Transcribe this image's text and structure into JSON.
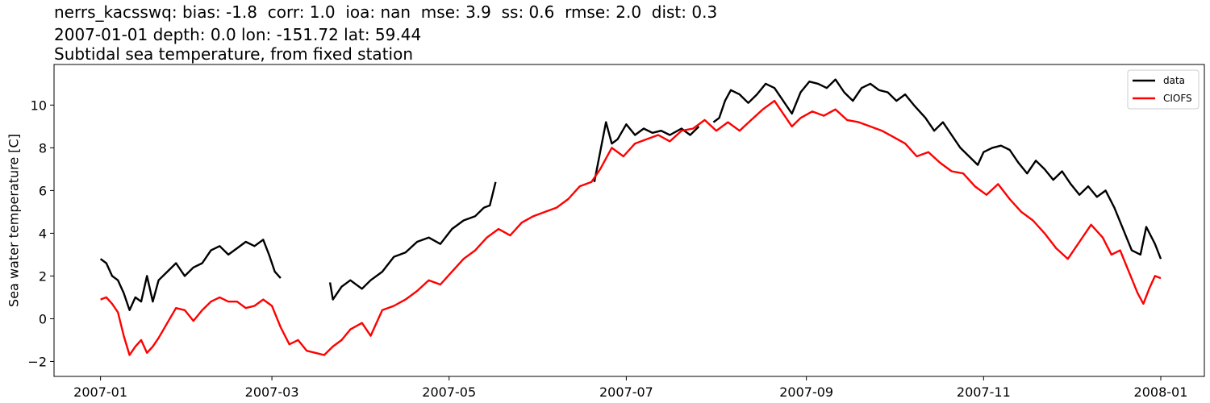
{
  "header": {
    "title_line1": "nerrs_kacsswq: bias: -1.8  corr: 1.0  ioa: nan  mse: 3.9  ss: 0.6  rmse: 2.0  dist: 0.3",
    "title_line2": "2007-01-01 depth: 0.0 lon: -151.72 lat: 59.44",
    "title_line3": "Subtidal sea temperature, from fixed station"
  },
  "chart_data": {
    "type": "line",
    "xlabel": "",
    "ylabel": "Sea water temperature [C]",
    "xlim": [
      "2006-12-16",
      "2008-01-16"
    ],
    "ylim": [
      -2.7,
      11.9
    ],
    "x_ticks": [
      "2007-01",
      "2007-03",
      "2007-05",
      "2007-07",
      "2007-09",
      "2007-11",
      "2008-01"
    ],
    "y_ticks": [
      -2,
      0,
      2,
      4,
      6,
      8,
      10
    ],
    "legend_position": "top-right",
    "grid": false,
    "series": [
      {
        "name": "data",
        "color": "#000000",
        "segments": [
          [
            [
              "2007-01-01",
              2.8
            ],
            [
              "2007-01-03",
              2.6
            ],
            [
              "2007-01-05",
              2.0
            ],
            [
              "2007-01-07",
              1.8
            ],
            [
              "2007-01-09",
              1.2
            ],
            [
              "2007-01-11",
              0.4
            ],
            [
              "2007-01-13",
              1.0
            ],
            [
              "2007-01-15",
              0.8
            ],
            [
              "2007-01-17",
              2.0
            ],
            [
              "2007-01-19",
              0.8
            ],
            [
              "2007-01-21",
              1.8
            ],
            [
              "2007-01-24",
              2.2
            ],
            [
              "2007-01-27",
              2.6
            ],
            [
              "2007-01-30",
              2.0
            ],
            [
              "2007-02-02",
              2.4
            ],
            [
              "2007-02-05",
              2.6
            ],
            [
              "2007-02-08",
              3.2
            ],
            [
              "2007-02-11",
              3.4
            ],
            [
              "2007-02-14",
              3.0
            ],
            [
              "2007-02-17",
              3.3
            ],
            [
              "2007-02-20",
              3.6
            ],
            [
              "2007-02-23",
              3.4
            ],
            [
              "2007-02-26",
              3.7
            ],
            [
              "2007-02-28",
              3.0
            ],
            [
              "2007-03-02",
              2.2
            ],
            [
              "2007-03-04",
              1.9
            ]
          ],
          [
            [
              "2007-03-21",
              1.7
            ],
            [
              "2007-03-22",
              0.9
            ],
            [
              "2007-03-25",
              1.5
            ],
            [
              "2007-03-28",
              1.8
            ],
            [
              "2007-04-01",
              1.4
            ],
            [
              "2007-04-04",
              1.8
            ],
            [
              "2007-04-08",
              2.2
            ],
            [
              "2007-04-12",
              2.9
            ],
            [
              "2007-04-16",
              3.1
            ],
            [
              "2007-04-20",
              3.6
            ],
            [
              "2007-04-24",
              3.8
            ],
            [
              "2007-04-28",
              3.5
            ],
            [
              "2007-05-02",
              4.2
            ],
            [
              "2007-05-06",
              4.6
            ],
            [
              "2007-05-10",
              4.8
            ],
            [
              "2007-05-13",
              5.2
            ],
            [
              "2007-05-15",
              5.3
            ],
            [
              "2007-05-17",
              6.4
            ]
          ],
          [
            [
              "2007-06-20",
              6.4
            ],
            [
              "2007-06-22",
              7.8
            ],
            [
              "2007-06-24",
              9.2
            ],
            [
              "2007-06-26",
              8.2
            ],
            [
              "2007-06-28",
              8.4
            ],
            [
              "2007-07-01",
              9.1
            ],
            [
              "2007-07-04",
              8.6
            ],
            [
              "2007-07-07",
              8.9
            ],
            [
              "2007-07-10",
              8.7
            ],
            [
              "2007-07-13",
              8.8
            ],
            [
              "2007-07-16",
              8.6
            ],
            [
              "2007-07-20",
              8.9
            ],
            [
              "2007-07-23",
              8.6
            ],
            [
              "2007-07-26",
              9.0
            ]
          ],
          [
            [
              "2007-07-31",
              9.2
            ],
            [
              "2007-08-02",
              9.4
            ],
            [
              "2007-08-04",
              10.2
            ],
            [
              "2007-08-06",
              10.7
            ],
            [
              "2007-08-09",
              10.5
            ],
            [
              "2007-08-12",
              10.1
            ],
            [
              "2007-08-15",
              10.5
            ],
            [
              "2007-08-18",
              11.0
            ],
            [
              "2007-08-21",
              10.8
            ],
            [
              "2007-08-24",
              10.2
            ],
            [
              "2007-08-27",
              9.6
            ],
            [
              "2007-08-30",
              10.6
            ],
            [
              "2007-09-02",
              11.1
            ],
            [
              "2007-09-05",
              11.0
            ],
            [
              "2007-09-08",
              10.8
            ],
            [
              "2007-09-11",
              11.2
            ],
            [
              "2007-09-14",
              10.6
            ],
            [
              "2007-09-17",
              10.2
            ],
            [
              "2007-09-20",
              10.8
            ],
            [
              "2007-09-23",
              11.0
            ],
            [
              "2007-09-26",
              10.7
            ],
            [
              "2007-09-29",
              10.6
            ],
            [
              "2007-10-02",
              10.2
            ],
            [
              "2007-10-05",
              10.5
            ],
            [
              "2007-10-08",
              10.0
            ],
            [
              "2007-10-12",
              9.4
            ],
            [
              "2007-10-15",
              8.8
            ],
            [
              "2007-10-18",
              9.2
            ],
            [
              "2007-10-21",
              8.6
            ],
            [
              "2007-10-24",
              8.0
            ],
            [
              "2007-10-27",
              7.6
            ],
            [
              "2007-10-30",
              7.2
            ],
            [
              "2007-11-01",
              7.8
            ],
            [
              "2007-11-04",
              8.0
            ],
            [
              "2007-11-07",
              8.1
            ],
            [
              "2007-11-10",
              7.9
            ],
            [
              "2007-11-13",
              7.3
            ],
            [
              "2007-11-16",
              6.8
            ],
            [
              "2007-11-19",
              7.4
            ],
            [
              "2007-11-22",
              7.0
            ],
            [
              "2007-11-25",
              6.5
            ],
            [
              "2007-11-28",
              6.9
            ],
            [
              "2007-12-01",
              6.3
            ],
            [
              "2007-12-04",
              5.8
            ],
            [
              "2007-12-07",
              6.2
            ],
            [
              "2007-12-10",
              5.7
            ],
            [
              "2007-12-13",
              6.0
            ],
            [
              "2007-12-16",
              5.2
            ],
            [
              "2007-12-19",
              4.2
            ],
            [
              "2007-12-22",
              3.2
            ],
            [
              "2007-12-25",
              3.0
            ],
            [
              "2007-12-27",
              4.3
            ],
            [
              "2007-12-30",
              3.5
            ],
            [
              "2008-01-01",
              2.8
            ]
          ]
        ]
      },
      {
        "name": "CIOFS",
        "color": "#ff0000",
        "segments": [
          [
            [
              "2007-01-01",
              0.9
            ],
            [
              "2007-01-03",
              1.0
            ],
            [
              "2007-01-05",
              0.7
            ],
            [
              "2007-01-07",
              0.3
            ],
            [
              "2007-01-09",
              -0.8
            ],
            [
              "2007-01-11",
              -1.7
            ],
            [
              "2007-01-13",
              -1.3
            ],
            [
              "2007-01-15",
              -1.0
            ],
            [
              "2007-01-17",
              -1.6
            ],
            [
              "2007-01-19",
              -1.3
            ],
            [
              "2007-01-21",
              -0.9
            ],
            [
              "2007-01-24",
              -0.2
            ],
            [
              "2007-01-27",
              0.5
            ],
            [
              "2007-01-30",
              0.4
            ],
            [
              "2007-02-02",
              -0.1
            ],
            [
              "2007-02-05",
              0.4
            ],
            [
              "2007-02-08",
              0.8
            ],
            [
              "2007-02-11",
              1.0
            ],
            [
              "2007-02-14",
              0.8
            ],
            [
              "2007-02-17",
              0.8
            ],
            [
              "2007-02-20",
              0.5
            ],
            [
              "2007-02-23",
              0.6
            ],
            [
              "2007-02-26",
              0.9
            ],
            [
              "2007-03-01",
              0.6
            ],
            [
              "2007-03-04",
              -0.4
            ],
            [
              "2007-03-07",
              -1.2
            ],
            [
              "2007-03-10",
              -1.0
            ],
            [
              "2007-03-13",
              -1.5
            ],
            [
              "2007-03-16",
              -1.6
            ],
            [
              "2007-03-19",
              -1.7
            ],
            [
              "2007-03-22",
              -1.3
            ],
            [
              "2007-03-25",
              -1.0
            ],
            [
              "2007-03-28",
              -0.5
            ],
            [
              "2007-04-01",
              -0.2
            ],
            [
              "2007-04-04",
              -0.8
            ],
            [
              "2007-04-08",
              0.4
            ],
            [
              "2007-04-12",
              0.6
            ],
            [
              "2007-04-16",
              0.9
            ],
            [
              "2007-04-20",
              1.3
            ],
            [
              "2007-04-24",
              1.8
            ],
            [
              "2007-04-28",
              1.6
            ],
            [
              "2007-05-02",
              2.2
            ],
            [
              "2007-05-06",
              2.8
            ],
            [
              "2007-05-10",
              3.2
            ],
            [
              "2007-05-14",
              3.8
            ],
            [
              "2007-05-18",
              4.2
            ],
            [
              "2007-05-22",
              3.9
            ],
            [
              "2007-05-26",
              4.5
            ],
            [
              "2007-05-30",
              4.8
            ],
            [
              "2007-06-03",
              5.0
            ],
            [
              "2007-06-07",
              5.2
            ],
            [
              "2007-06-11",
              5.6
            ],
            [
              "2007-06-15",
              6.2
            ],
            [
              "2007-06-19",
              6.4
            ],
            [
              "2007-06-22",
              7.0
            ],
            [
              "2007-06-26",
              8.0
            ],
            [
              "2007-06-30",
              7.6
            ],
            [
              "2007-07-04",
              8.2
            ],
            [
              "2007-07-08",
              8.4
            ],
            [
              "2007-07-12",
              8.6
            ],
            [
              "2007-07-16",
              8.3
            ],
            [
              "2007-07-20",
              8.8
            ],
            [
              "2007-07-24",
              8.9
            ],
            [
              "2007-07-28",
              9.3
            ],
            [
              "2007-08-01",
              8.8
            ],
            [
              "2007-08-05",
              9.2
            ],
            [
              "2007-08-09",
              8.8
            ],
            [
              "2007-08-13",
              9.3
            ],
            [
              "2007-08-17",
              9.8
            ],
            [
              "2007-08-21",
              10.2
            ],
            [
              "2007-08-24",
              9.6
            ],
            [
              "2007-08-27",
              9.0
            ],
            [
              "2007-08-30",
              9.4
            ],
            [
              "2007-09-03",
              9.7
            ],
            [
              "2007-09-07",
              9.5
            ],
            [
              "2007-09-11",
              9.8
            ],
            [
              "2007-09-15",
              9.3
            ],
            [
              "2007-09-19",
              9.2
            ],
            [
              "2007-09-23",
              9.0
            ],
            [
              "2007-09-27",
              8.8
            ],
            [
              "2007-10-01",
              8.5
            ],
            [
              "2007-10-05",
              8.2
            ],
            [
              "2007-10-09",
              7.6
            ],
            [
              "2007-10-13",
              7.8
            ],
            [
              "2007-10-17",
              7.3
            ],
            [
              "2007-10-21",
              6.9
            ],
            [
              "2007-10-25",
              6.8
            ],
            [
              "2007-10-29",
              6.2
            ],
            [
              "2007-11-02",
              5.8
            ],
            [
              "2007-11-06",
              6.3
            ],
            [
              "2007-11-10",
              5.6
            ],
            [
              "2007-11-14",
              5.0
            ],
            [
              "2007-11-18",
              4.6
            ],
            [
              "2007-11-22",
              4.0
            ],
            [
              "2007-11-26",
              3.3
            ],
            [
              "2007-11-30",
              2.8
            ],
            [
              "2007-12-04",
              3.6
            ],
            [
              "2007-12-08",
              4.4
            ],
            [
              "2007-12-12",
              3.8
            ],
            [
              "2007-12-15",
              3.0
            ],
            [
              "2007-12-18",
              3.2
            ],
            [
              "2007-12-21",
              2.2
            ],
            [
              "2007-12-24",
              1.2
            ],
            [
              "2007-12-26",
              0.7
            ],
            [
              "2007-12-28",
              1.4
            ],
            [
              "2007-12-30",
              2.0
            ],
            [
              "2008-01-01",
              1.9
            ]
          ]
        ]
      }
    ]
  }
}
